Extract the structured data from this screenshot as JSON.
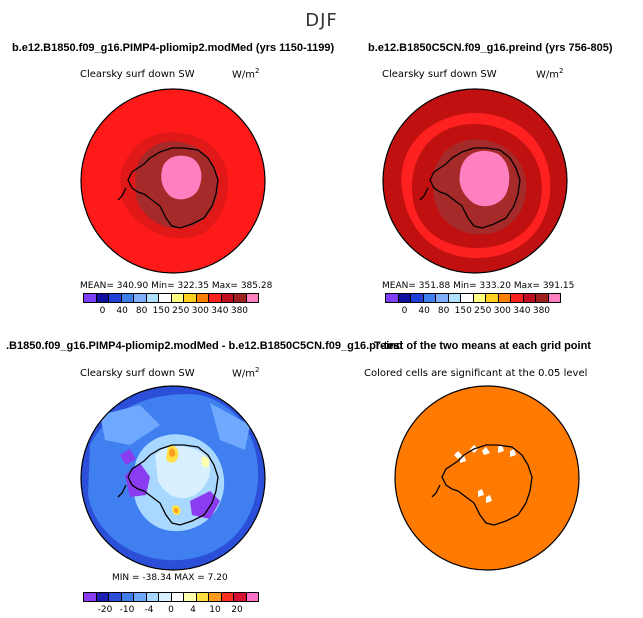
{
  "figure": {
    "title": "DJF"
  },
  "panels": [
    {
      "title": "b.e12.B1850.f09_g16.PIMP4-pliomip2.modMed (yrs 1150-1199)",
      "variable": "Clearsky surf down SW",
      "units_base": "W/m",
      "units_exp": "2",
      "stats": "MEAN= 340.90   Min= 322.35   Max= 385.28",
      "colorbar_colors": [
        "#7f3fff",
        "#1010a0",
        "#1f3fd8",
        "#3f7ff0",
        "#7fb0ff",
        "#b0e0ff",
        "#ffffff",
        "#ffff80",
        "#ffd020",
        "#ff8000",
        "#ff2020",
        "#c01020",
        "#a02020",
        "#ff80c0"
      ],
      "colorbar_labels": [
        "0",
        "40",
        "80",
        "150",
        "250",
        "300",
        "340",
        "380"
      ]
    },
    {
      "title": "b.e12.B1850C5CN.f09_g16.preind (yrs 756-805)",
      "variable": "Clearsky surf down SW",
      "units_base": "W/m",
      "units_exp": "2",
      "stats": "MEAN= 351.88   Min= 333.20   Max= 391.15",
      "colorbar_colors": [
        "#7f3fff",
        "#1010a0",
        "#1f3fd8",
        "#3f7ff0",
        "#7fb0ff",
        "#b0e0ff",
        "#ffffff",
        "#ffff80",
        "#ffd020",
        "#ff8000",
        "#ff2020",
        "#c01020",
        "#a02020",
        "#ff80c0"
      ],
      "colorbar_labels": [
        "0",
        "40",
        "80",
        "150",
        "250",
        "300",
        "340",
        "380"
      ]
    },
    {
      "title": ".B1850.f09_g16.PIMP4-pliomip2.modMed - b.e12.B1850C5CN.f09_g16.preind",
      "variable": "Clearsky surf down SW",
      "units_base": "W/m",
      "units_exp": "2",
      "stats": "MIN = -38.34  MAX =   7.20",
      "colorbar_colors": [
        "#8a3cf0",
        "#1f1fb4",
        "#2b4fd8",
        "#3f7ff0",
        "#6fa8ff",
        "#a8d8ff",
        "#d8f0ff",
        "#ffffff",
        "#ffffb0",
        "#ffe040",
        "#ff9a20",
        "#ff3020",
        "#d81030",
        "#ff70c8"
      ],
      "colorbar_labels": [
        "-20",
        "-10",
        "-4",
        "0",
        "4",
        "10",
        "20"
      ]
    },
    {
      "title": "T-test of the two means at each grid point",
      "variable": "Colored cells are significant at the 0.05 level"
    }
  ]
}
